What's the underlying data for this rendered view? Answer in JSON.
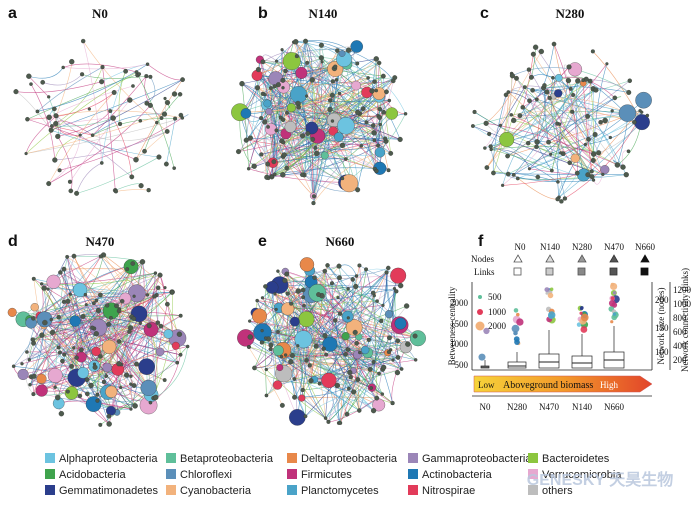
{
  "panels": [
    {
      "letter": "a",
      "title": "N0"
    },
    {
      "letter": "b",
      "title": "N140"
    },
    {
      "letter": "c",
      "title": "N280"
    },
    {
      "letter": "d",
      "title": "N470"
    },
    {
      "letter": "e",
      "title": "N660"
    },
    {
      "letter": "f",
      "title": ""
    }
  ],
  "panel_f": {
    "row_labels": {
      "nodes": "Nodes",
      "links": "Links"
    },
    "columns": [
      "N0",
      "N140",
      "N280",
      "N470",
      "N660"
    ],
    "size_legend": [
      "500",
      "1000",
      "2000"
    ],
    "y_left_label": "Betweeness centrality",
    "y_left_ticks": [
      "2000",
      "1500",
      "1000",
      "500"
    ],
    "y_mid_label": "Network size (nodes)",
    "y_mid_ticks": [
      "200",
      "150",
      "100"
    ],
    "y_right_label": "Network connectivity (links)",
    "y_right_ticks": [
      "1200",
      "1000",
      "800",
      "600",
      "400",
      "200"
    ],
    "gradient_low": "Low",
    "gradient_mid": "Aboveground biomass",
    "gradient_high": "High",
    "x_categories": [
      "N0",
      "N280",
      "N470",
      "N140",
      "N660"
    ]
  },
  "legend": [
    {
      "label": "Alphaproteobacteria",
      "color": "#6cc3e0"
    },
    {
      "label": "Betaproteobacteria",
      "color": "#5fbf9a"
    },
    {
      "label": "Deltaproteobacteria",
      "color": "#e8884a"
    },
    {
      "label": "Gammaproteobacteria",
      "color": "#9b86b8"
    },
    {
      "label": "Bacteroidetes",
      "color": "#8cc63f"
    },
    {
      "label": "Acidobacteria",
      "color": "#3fa34d"
    },
    {
      "label": "Chloroflexi",
      "color": "#5b8fb9"
    },
    {
      "label": "Firmicutes",
      "color": "#c0327a"
    },
    {
      "label": "Actinobacteria",
      "color": "#1f78b4"
    },
    {
      "label": "Verrucomicrobia",
      "color": "#e6a8d0"
    },
    {
      "label": "Gemmatimonadetes",
      "color": "#2b3e8c"
    },
    {
      "label": "Cyanobacteria",
      "color": "#f2b27c"
    },
    {
      "label": "Planctomycetes",
      "color": "#4aa3c8"
    },
    {
      "label": "Nitrospirae",
      "color": "#e23b5a"
    },
    {
      "label": "others",
      "color": "#bdbdbd"
    }
  ],
  "watermark": "GENESKY 天昊生物"
}
